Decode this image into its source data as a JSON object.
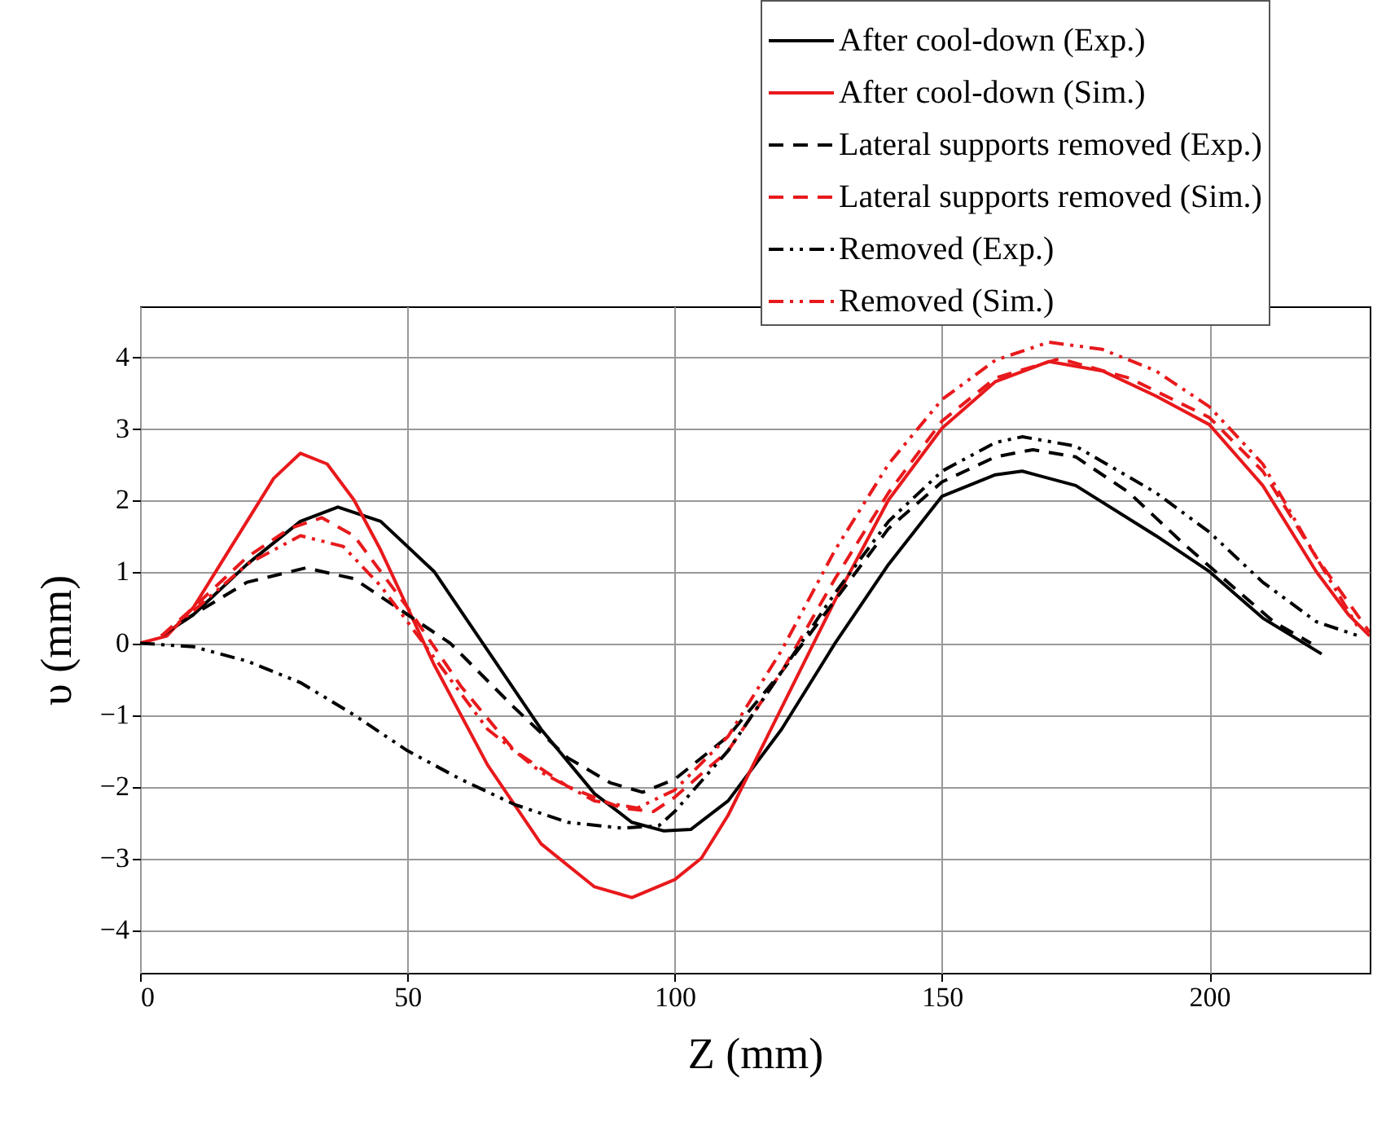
{
  "chart_data": {
    "type": "line",
    "xlabel": "Z (mm)",
    "ylabel": "υ (mm)",
    "xlim": [
      0,
      230
    ],
    "ylim": [
      -4.6,
      4.7
    ],
    "xticks": [
      0,
      50,
      100,
      150,
      200
    ],
    "yticks": [
      -4,
      -3,
      -2,
      -1,
      0,
      1,
      2,
      3,
      4
    ],
    "grid": true,
    "legend": "top right",
    "marker": "none",
    "series": [
      {
        "name": "After cool-down (Exp.)",
        "color": "#000000",
        "line_style": "solid",
        "x": [
          4,
          10,
          20,
          30,
          37,
          45,
          55,
          65,
          75,
          85,
          92,
          98,
          103,
          110,
          120,
          130,
          140,
          150,
          160,
          165,
          175,
          190,
          200,
          210,
          221
        ],
        "values": [
          0.1,
          0.4,
          1.1,
          1.7,
          1.9,
          1.7,
          1.0,
          -0.1,
          -1.2,
          -2.1,
          -2.5,
          -2.62,
          -2.6,
          -2.2,
          -1.2,
          0,
          1.1,
          2.05,
          2.35,
          2.4,
          2.2,
          1.5,
          1.0,
          0.35,
          -0.15
        ]
      },
      {
        "name": "After cool-down (Sim.)",
        "color": "#e8191c",
        "line_style": "solid",
        "x": [
          0,
          5,
          10,
          20,
          25,
          30,
          35,
          40,
          45,
          50,
          55,
          65,
          75,
          85,
          92,
          100,
          105,
          110,
          120,
          130,
          140,
          150,
          160,
          170,
          180,
          190,
          200,
          210,
          220,
          226,
          230
        ],
        "values": [
          0,
          0.1,
          0.5,
          1.7,
          2.3,
          2.65,
          2.5,
          2.0,
          1.3,
          0.5,
          -0.3,
          -1.7,
          -2.8,
          -3.4,
          -3.55,
          -3.3,
          -3.0,
          -2.4,
          -0.9,
          0.6,
          2.0,
          3.0,
          3.65,
          3.93,
          3.8,
          3.45,
          3.05,
          2.2,
          1.0,
          0.4,
          0.1
        ]
      },
      {
        "name": "Lateral supports removed (Exp.)",
        "color": "#000000",
        "line_style": "dashed",
        "x": [
          4,
          10,
          20,
          31,
          40,
          50,
          58,
          70,
          80,
          88,
          94,
          100,
          110,
          120,
          130,
          140,
          150,
          160,
          167,
          175,
          185,
          195,
          205,
          212,
          219
        ],
        "values": [
          0.1,
          0.4,
          0.85,
          1.05,
          0.9,
          0.4,
          0,
          -0.9,
          -1.6,
          -1.95,
          -2.08,
          -1.9,
          -1.3,
          -0.4,
          0.6,
          1.6,
          2.25,
          2.6,
          2.7,
          2.6,
          2.1,
          1.4,
          0.75,
          0.3,
          0
        ]
      },
      {
        "name": "Lateral supports removed (Sim.)",
        "color": "#e8191c",
        "line_style": "dashed",
        "x": [
          4,
          10,
          20,
          28,
          34,
          40,
          50,
          60,
          70,
          80,
          90,
          96,
          100,
          110,
          120,
          130,
          140,
          150,
          160,
          172,
          185,
          200,
          210,
          220,
          230
        ],
        "values": [
          0.1,
          0.5,
          1.2,
          1.6,
          1.75,
          1.5,
          0.5,
          -0.6,
          -1.5,
          -2.0,
          -2.3,
          -2.35,
          -2.15,
          -1.5,
          -0.4,
          0.9,
          2.1,
          3.1,
          3.7,
          3.97,
          3.7,
          3.15,
          2.4,
          1.2,
          0.15
        ]
      },
      {
        "name": "Removed (Exp.)",
        "color": "#000000",
        "line_style": "dashdot",
        "x": [
          0,
          10,
          20,
          30,
          40,
          50,
          60,
          70,
          80,
          90,
          97,
          100,
          110,
          120,
          130,
          140,
          150,
          160,
          165,
          175,
          190,
          200,
          210,
          220,
          228
        ],
        "values": [
          0,
          -0.05,
          -0.25,
          -0.55,
          -1.0,
          -1.5,
          -1.9,
          -2.25,
          -2.5,
          -2.58,
          -2.55,
          -2.35,
          -1.5,
          -0.4,
          0.7,
          1.7,
          2.4,
          2.8,
          2.88,
          2.75,
          2.1,
          1.55,
          0.85,
          0.3,
          0.1
        ]
      },
      {
        "name": "Removed (Sim.)",
        "color": "#e8191c",
        "line_style": "dashdot",
        "x": [
          4,
          10,
          20,
          30,
          38,
          45,
          55,
          65,
          75,
          85,
          93,
          100,
          110,
          120,
          130,
          140,
          150,
          160,
          170,
          180,
          190,
          200,
          210,
          220,
          228
        ],
        "values": [
          0.1,
          0.45,
          1.1,
          1.5,
          1.35,
          0.8,
          -0.2,
          -1.2,
          -1.8,
          -2.2,
          -2.3,
          -2.05,
          -1.3,
          -0.1,
          1.3,
          2.5,
          3.4,
          3.95,
          4.2,
          4.1,
          3.8,
          3.3,
          2.5,
          1.2,
          0.2
        ]
      }
    ]
  }
}
